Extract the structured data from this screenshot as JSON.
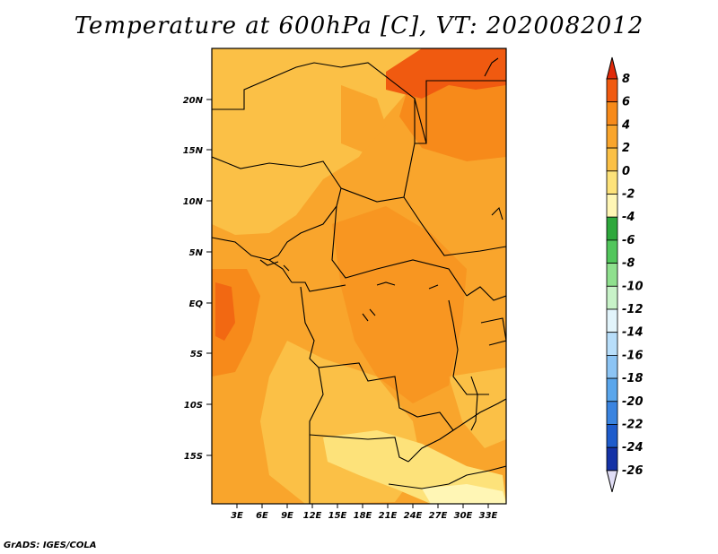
{
  "title": "Temperature at 600hPa [C], VT: 2020082012",
  "credit": "GrADS: IGES/COLA",
  "lat_ticks": [
    "20N",
    "15N",
    "10N",
    "5N",
    "EQ",
    "5S",
    "10S",
    "15S"
  ],
  "lon_ticks": [
    "3E",
    "6E",
    "9E",
    "12E",
    "15E",
    "18E",
    "21E",
    "24E",
    "27E",
    "30E",
    "33E"
  ],
  "colorbar": {
    "labels": [
      "8",
      "6",
      "4",
      "2",
      "0",
      "-2",
      "-4",
      "-6",
      "-8",
      "-10",
      "-12",
      "-14",
      "-16",
      "-18",
      "-20",
      "-22",
      "-24",
      "-26"
    ],
    "colors": [
      "#e02a0a",
      "#f05a10",
      "#f78a1a",
      "#f9a52c",
      "#fbc046",
      "#fde27a",
      "#fff6b5",
      "#2ea83c",
      "#52c65c",
      "#8fe08e",
      "#c8f2c8",
      "#e2f4fb",
      "#b8defa",
      "#8cc4f4",
      "#5aa6ec",
      "#3a84e0",
      "#1e5ccc",
      "#1432a6",
      "#0a1a6e",
      "#e0ddf5"
    ]
  },
  "colors": {
    "frame": "#000000",
    "warm_2_4": "#f9a52c",
    "warm_0_2": "#fbc046",
    "warm_4_6": "#f78a1a",
    "warm_6_8": "#f05a10",
    "cool_m2_0": "#fde27a"
  }
}
